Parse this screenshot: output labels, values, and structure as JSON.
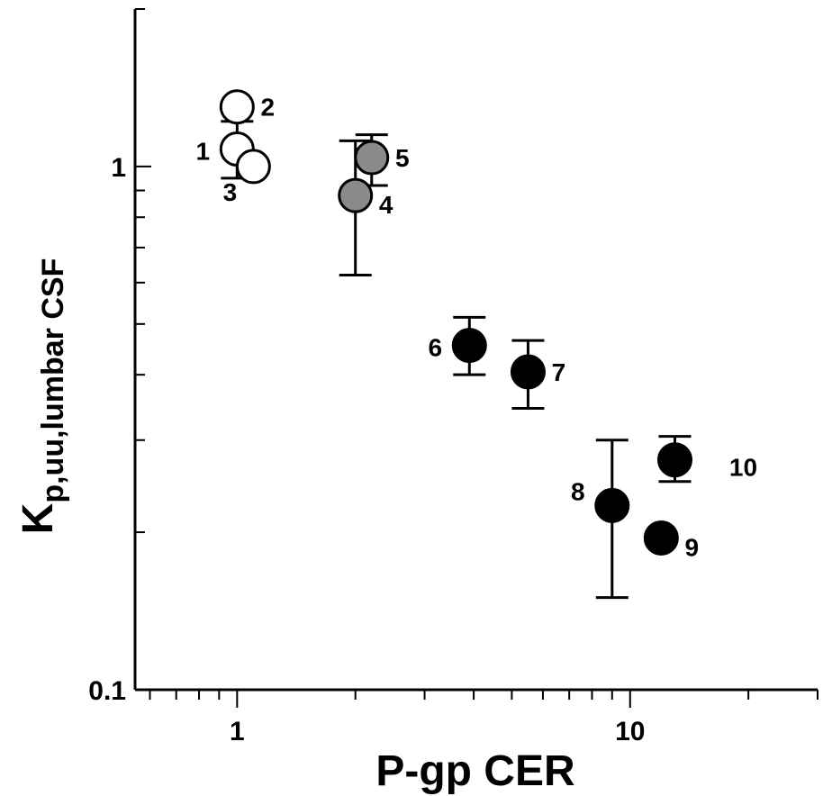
{
  "chart_data": {
    "type": "scatter",
    "title": "",
    "xlabel": "P-gp CER",
    "ylabel_main": "K",
    "ylabel_sub": "p,uu,lumbar CSF",
    "x_scale": "log",
    "y_scale": "log",
    "xlim": [
      0.55,
      30
    ],
    "ylim": [
      0.1,
      2.0
    ],
    "x_ticks": [
      {
        "value": 1,
        "label": "1"
      },
      {
        "value": 10,
        "label": "10"
      }
    ],
    "y_ticks": [
      {
        "value": 0.1,
        "label": "0.1"
      },
      {
        "value": 1,
        "label": "1"
      }
    ],
    "grid": false,
    "legend": "none",
    "colors": {
      "open": "#ffffff",
      "gray": "#8a8a8a",
      "black": "#000000",
      "stroke": "#000000"
    },
    "points": [
      {
        "label": "1",
        "x": 1.0,
        "y": 1.08,
        "fill": "open",
        "err_low": 0.95,
        "err_high": 1.22,
        "label_pos": "left"
      },
      {
        "label": "2",
        "x": 1.0,
        "y": 1.3,
        "fill": "open",
        "label_pos": "right"
      },
      {
        "label": "3",
        "x": 1.1,
        "y": 1.0,
        "fill": "open",
        "label_pos": "below-left"
      },
      {
        "label": "4",
        "x": 2.0,
        "y": 0.88,
        "fill": "gray",
        "err_low": 0.62,
        "err_high": 1.12,
        "label_pos": "below-right"
      },
      {
        "label": "5",
        "x": 2.2,
        "y": 1.04,
        "fill": "gray",
        "err_low": 0.92,
        "err_high": 1.15,
        "label_pos": "right"
      },
      {
        "label": "6",
        "x": 3.9,
        "y": 0.455,
        "fill": "black",
        "err_low": 0.4,
        "err_high": 0.515,
        "label_pos": "left"
      },
      {
        "label": "7",
        "x": 5.5,
        "y": 0.405,
        "fill": "black",
        "err_low": 0.345,
        "err_high": 0.465,
        "label_pos": "right"
      },
      {
        "label": "8",
        "x": 9.0,
        "y": 0.225,
        "fill": "black",
        "err_low": 0.15,
        "err_high": 0.3,
        "label_pos": "above-left"
      },
      {
        "label": "9",
        "x": 12.0,
        "y": 0.195,
        "fill": "black",
        "label_pos": "below-right"
      },
      {
        "label": "10",
        "x": 13.0,
        "y": 0.275,
        "fill": "black",
        "err_low": 0.25,
        "err_high": 0.305,
        "label_pos": "far-right"
      }
    ]
  }
}
